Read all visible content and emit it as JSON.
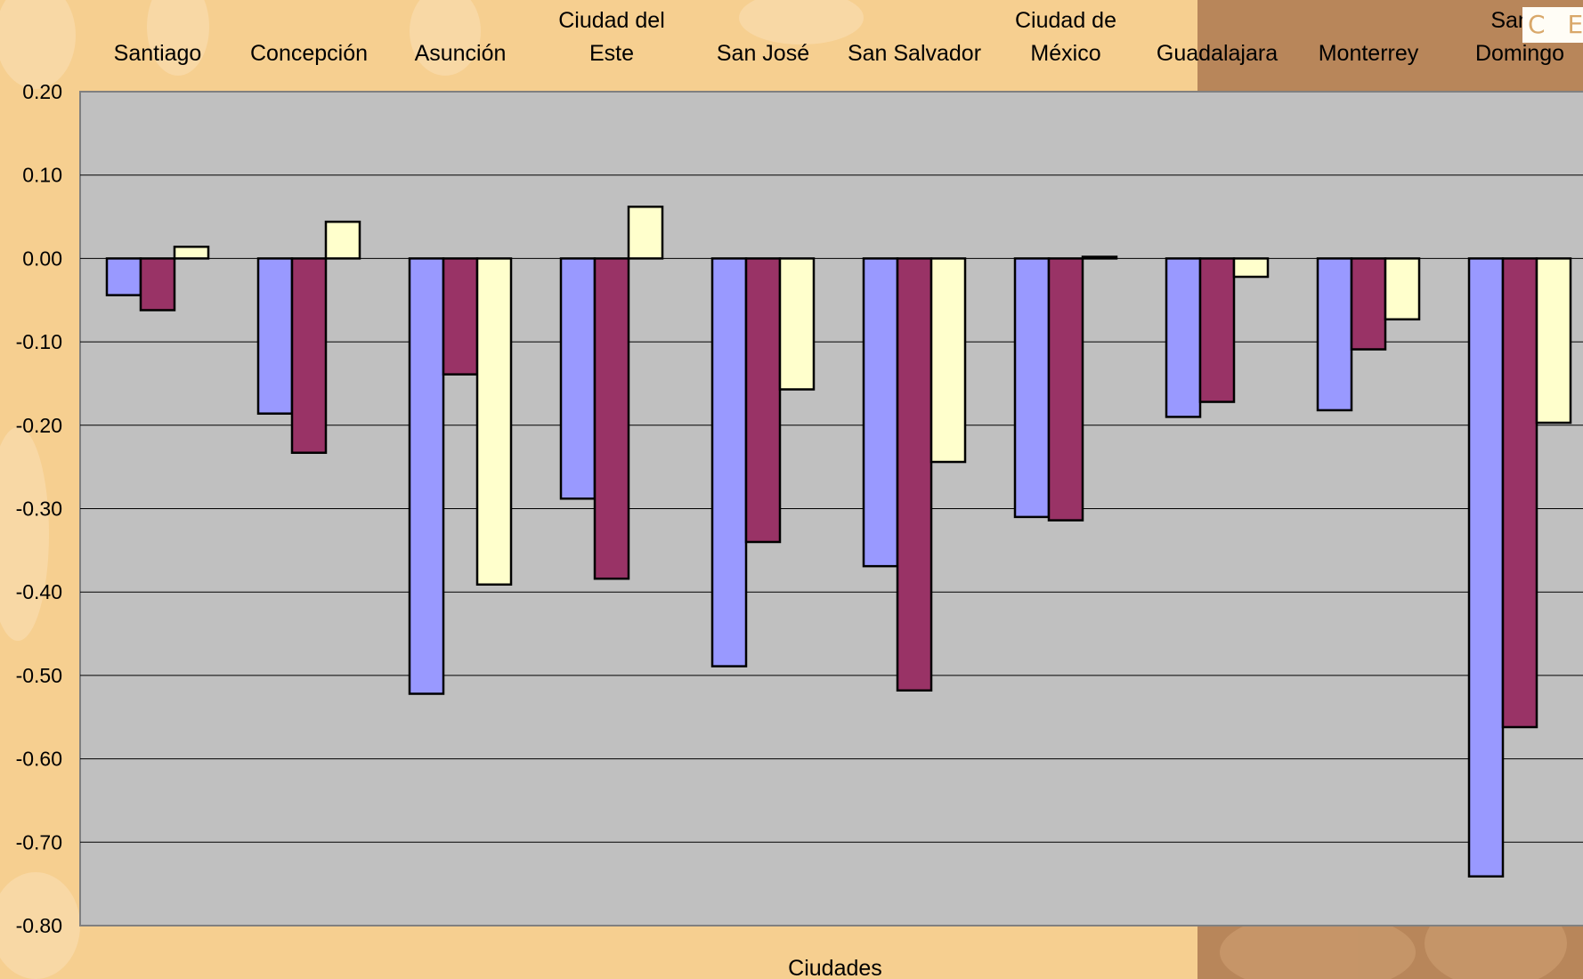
{
  "logo": {
    "text": "C E P"
  },
  "chart_data": {
    "type": "bar",
    "title": "",
    "xlabel": "Ciudades",
    "ylabel": "",
    "ylim": [
      -0.8,
      0.2
    ],
    "yticks": [
      0.2,
      0.1,
      0.0,
      -0.1,
      -0.2,
      -0.3,
      -0.4,
      -0.5,
      -0.6,
      -0.7,
      -0.8
    ],
    "ytick_labels": [
      "0.20",
      "0.10",
      "0.00",
      "-0.10",
      "-0.20",
      "-0.30",
      "-0.40",
      "-0.50",
      "-0.60",
      "-0.70",
      "-0.80"
    ],
    "category_axis_position": "top",
    "grid": true,
    "legend": "none",
    "categories": [
      [
        "Santiago"
      ],
      [
        "Concepción"
      ],
      [
        "Asunción"
      ],
      [
        "Ciudad del",
        "Este"
      ],
      [
        "San José"
      ],
      [
        "San Salvador"
      ],
      [
        "Ciudad de",
        "México"
      ],
      [
        "Guadalajara"
      ],
      [
        "Monterrey"
      ],
      [
        "Santo",
        "Domingo"
      ]
    ],
    "series": [
      {
        "color": "#9999ff",
        "values": [
          -0.044,
          -0.186,
          -0.522,
          -0.288,
          -0.489,
          -0.369,
          -0.31,
          -0.19,
          -0.182,
          -0.741
        ]
      },
      {
        "color": "#993366",
        "values": [
          -0.062,
          -0.233,
          -0.139,
          -0.384,
          -0.34,
          -0.518,
          -0.314,
          -0.172,
          -0.109,
          -0.562
        ]
      },
      {
        "color": "#ffffcc",
        "values": [
          0.014,
          0.044,
          -0.391,
          0.062,
          -0.157,
          -0.244,
          0.002,
          -0.022,
          -0.073,
          -0.197
        ]
      }
    ]
  }
}
